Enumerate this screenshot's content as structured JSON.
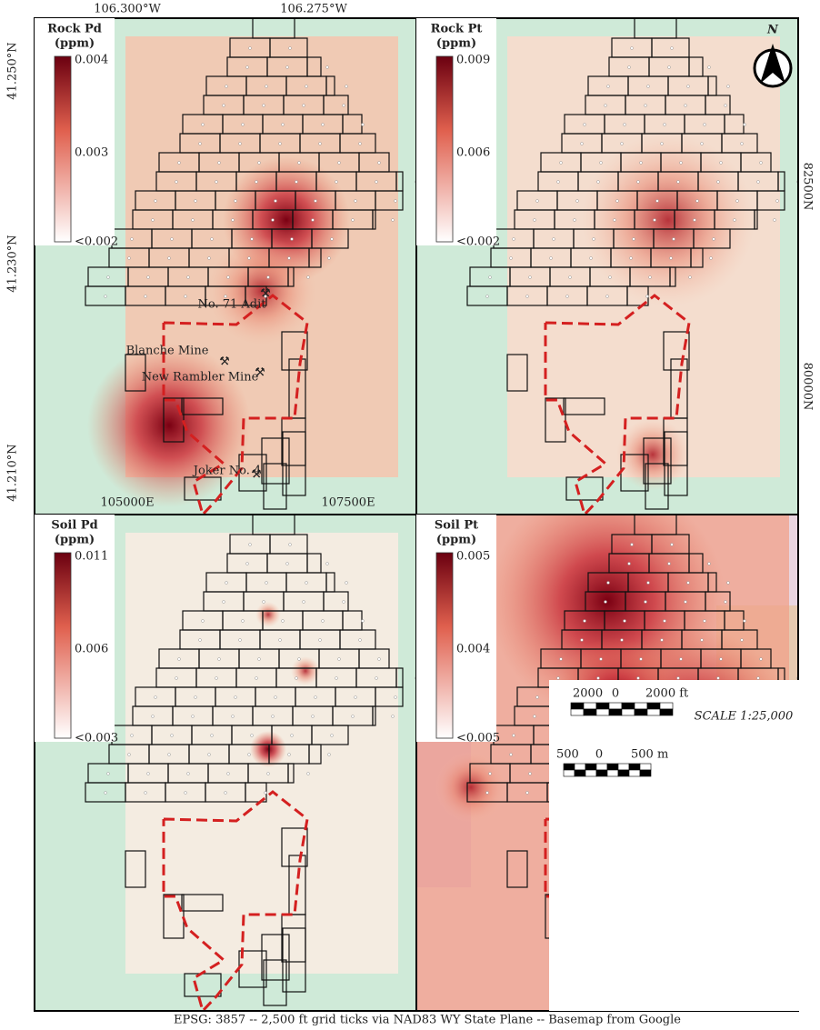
{
  "coordinates": {
    "longitude": [
      "106.300°W",
      "106.275°W"
    ],
    "latitude": [
      "41.250°N",
      "41.230°N",
      "41.210°N"
    ],
    "easting": [
      "105000E",
      "107500E"
    ],
    "northing": [
      "82500N",
      "80000N"
    ]
  },
  "panels": [
    {
      "title": "Rock Pd",
      "unit": "(ppm)",
      "legend": [
        "0.004",
        "0.003",
        "<0.002"
      ]
    },
    {
      "title": "Rock Pt",
      "unit": "(ppm)",
      "legend": [
        "0.009",
        "0.006",
        "<0.002"
      ]
    },
    {
      "title": "Soil Pd",
      "unit": "(ppm)",
      "legend": [
        "0.011",
        "0.006",
        "<0.003"
      ]
    },
    {
      "title": "Soil Pt",
      "unit": "(ppm)",
      "legend": [
        "0.005",
        "0.004",
        "<0.005"
      ]
    }
  ],
  "mine_labels": [
    "No. 71 Adit",
    "Blanche Mine",
    "New Rambler Mine",
    "Joker No. 4"
  ],
  "north_arrow": "N",
  "scale_bar": {
    "feet": [
      "2000",
      "0",
      "2000 ft"
    ],
    "meters": [
      "500",
      "0",
      "500 m"
    ],
    "scale": "SCALE 1:25,000"
  },
  "caption": "EPSG: 3857 -- 2,500 ft grid ticks via NAD83 WY State Plane -- Basemap from Google"
}
